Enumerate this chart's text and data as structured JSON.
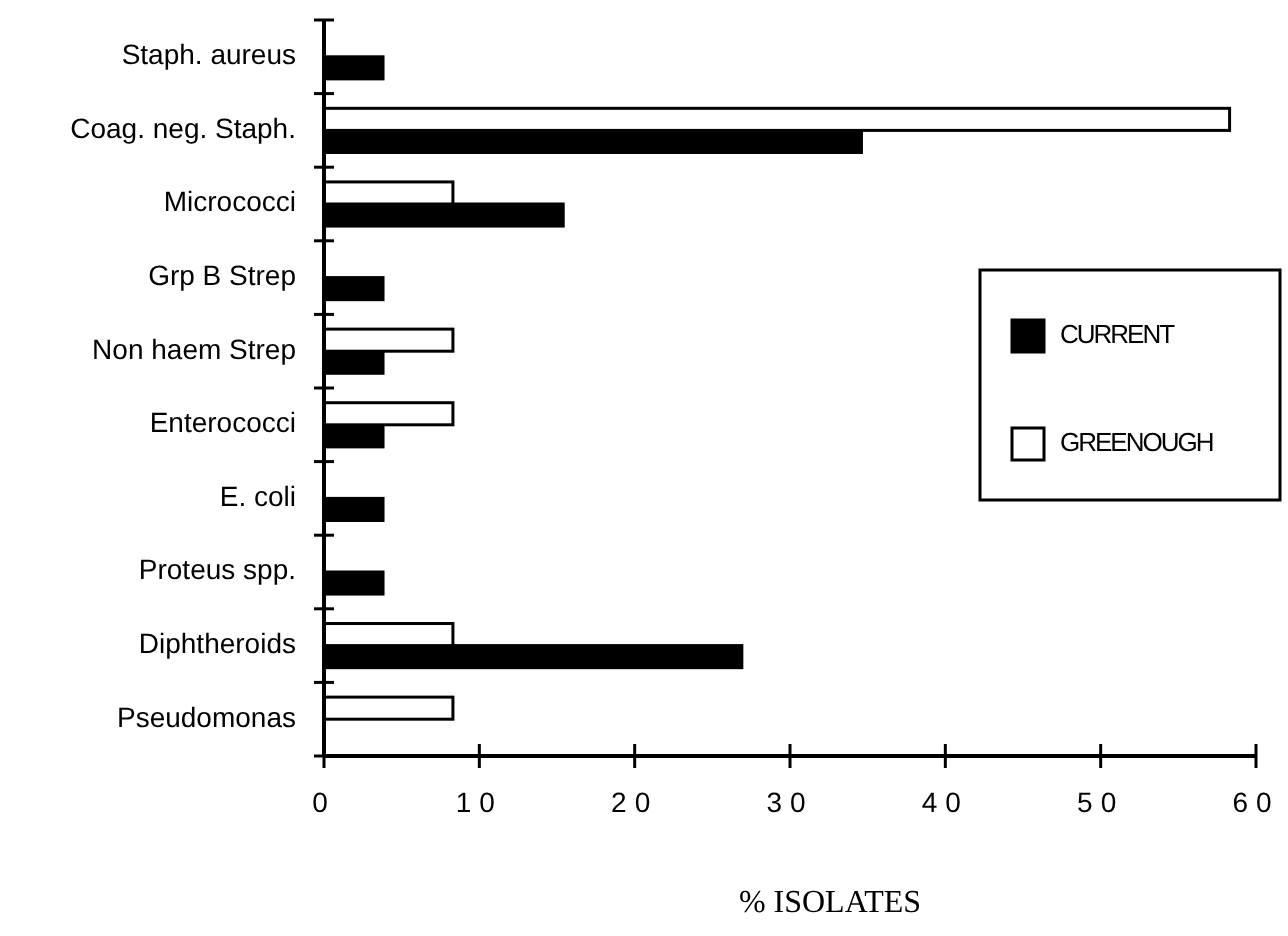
{
  "chart_data": {
    "type": "bar",
    "orientation": "horizontal",
    "xlabel": "% ISOLATES",
    "categories": [
      "Staph. aureus",
      "Coag. neg. Staph.",
      "Micrococci",
      "Grp B Strep",
      "Non haem Strep",
      "Enterococci",
      "E. coli",
      "Proteus spp.",
      "Diphtheroids",
      "Pseudomonas"
    ],
    "series": [
      {
        "name": "CURRENT",
        "color": "#000000",
        "values": [
          3.8,
          34.6,
          15.4,
          3.8,
          3.8,
          3.8,
          3.8,
          3.8,
          26.9,
          null
        ]
      },
      {
        "name": "GREENOUGH",
        "color": "#ffffff",
        "values": [
          null,
          58.3,
          8.3,
          null,
          8.3,
          8.3,
          null,
          null,
          8.3,
          8.3
        ]
      }
    ],
    "xlim": [
      0,
      60
    ],
    "xticks": [
      0,
      10,
      20,
      30,
      40,
      50,
      60
    ],
    "grid": false,
    "legend": "right"
  }
}
